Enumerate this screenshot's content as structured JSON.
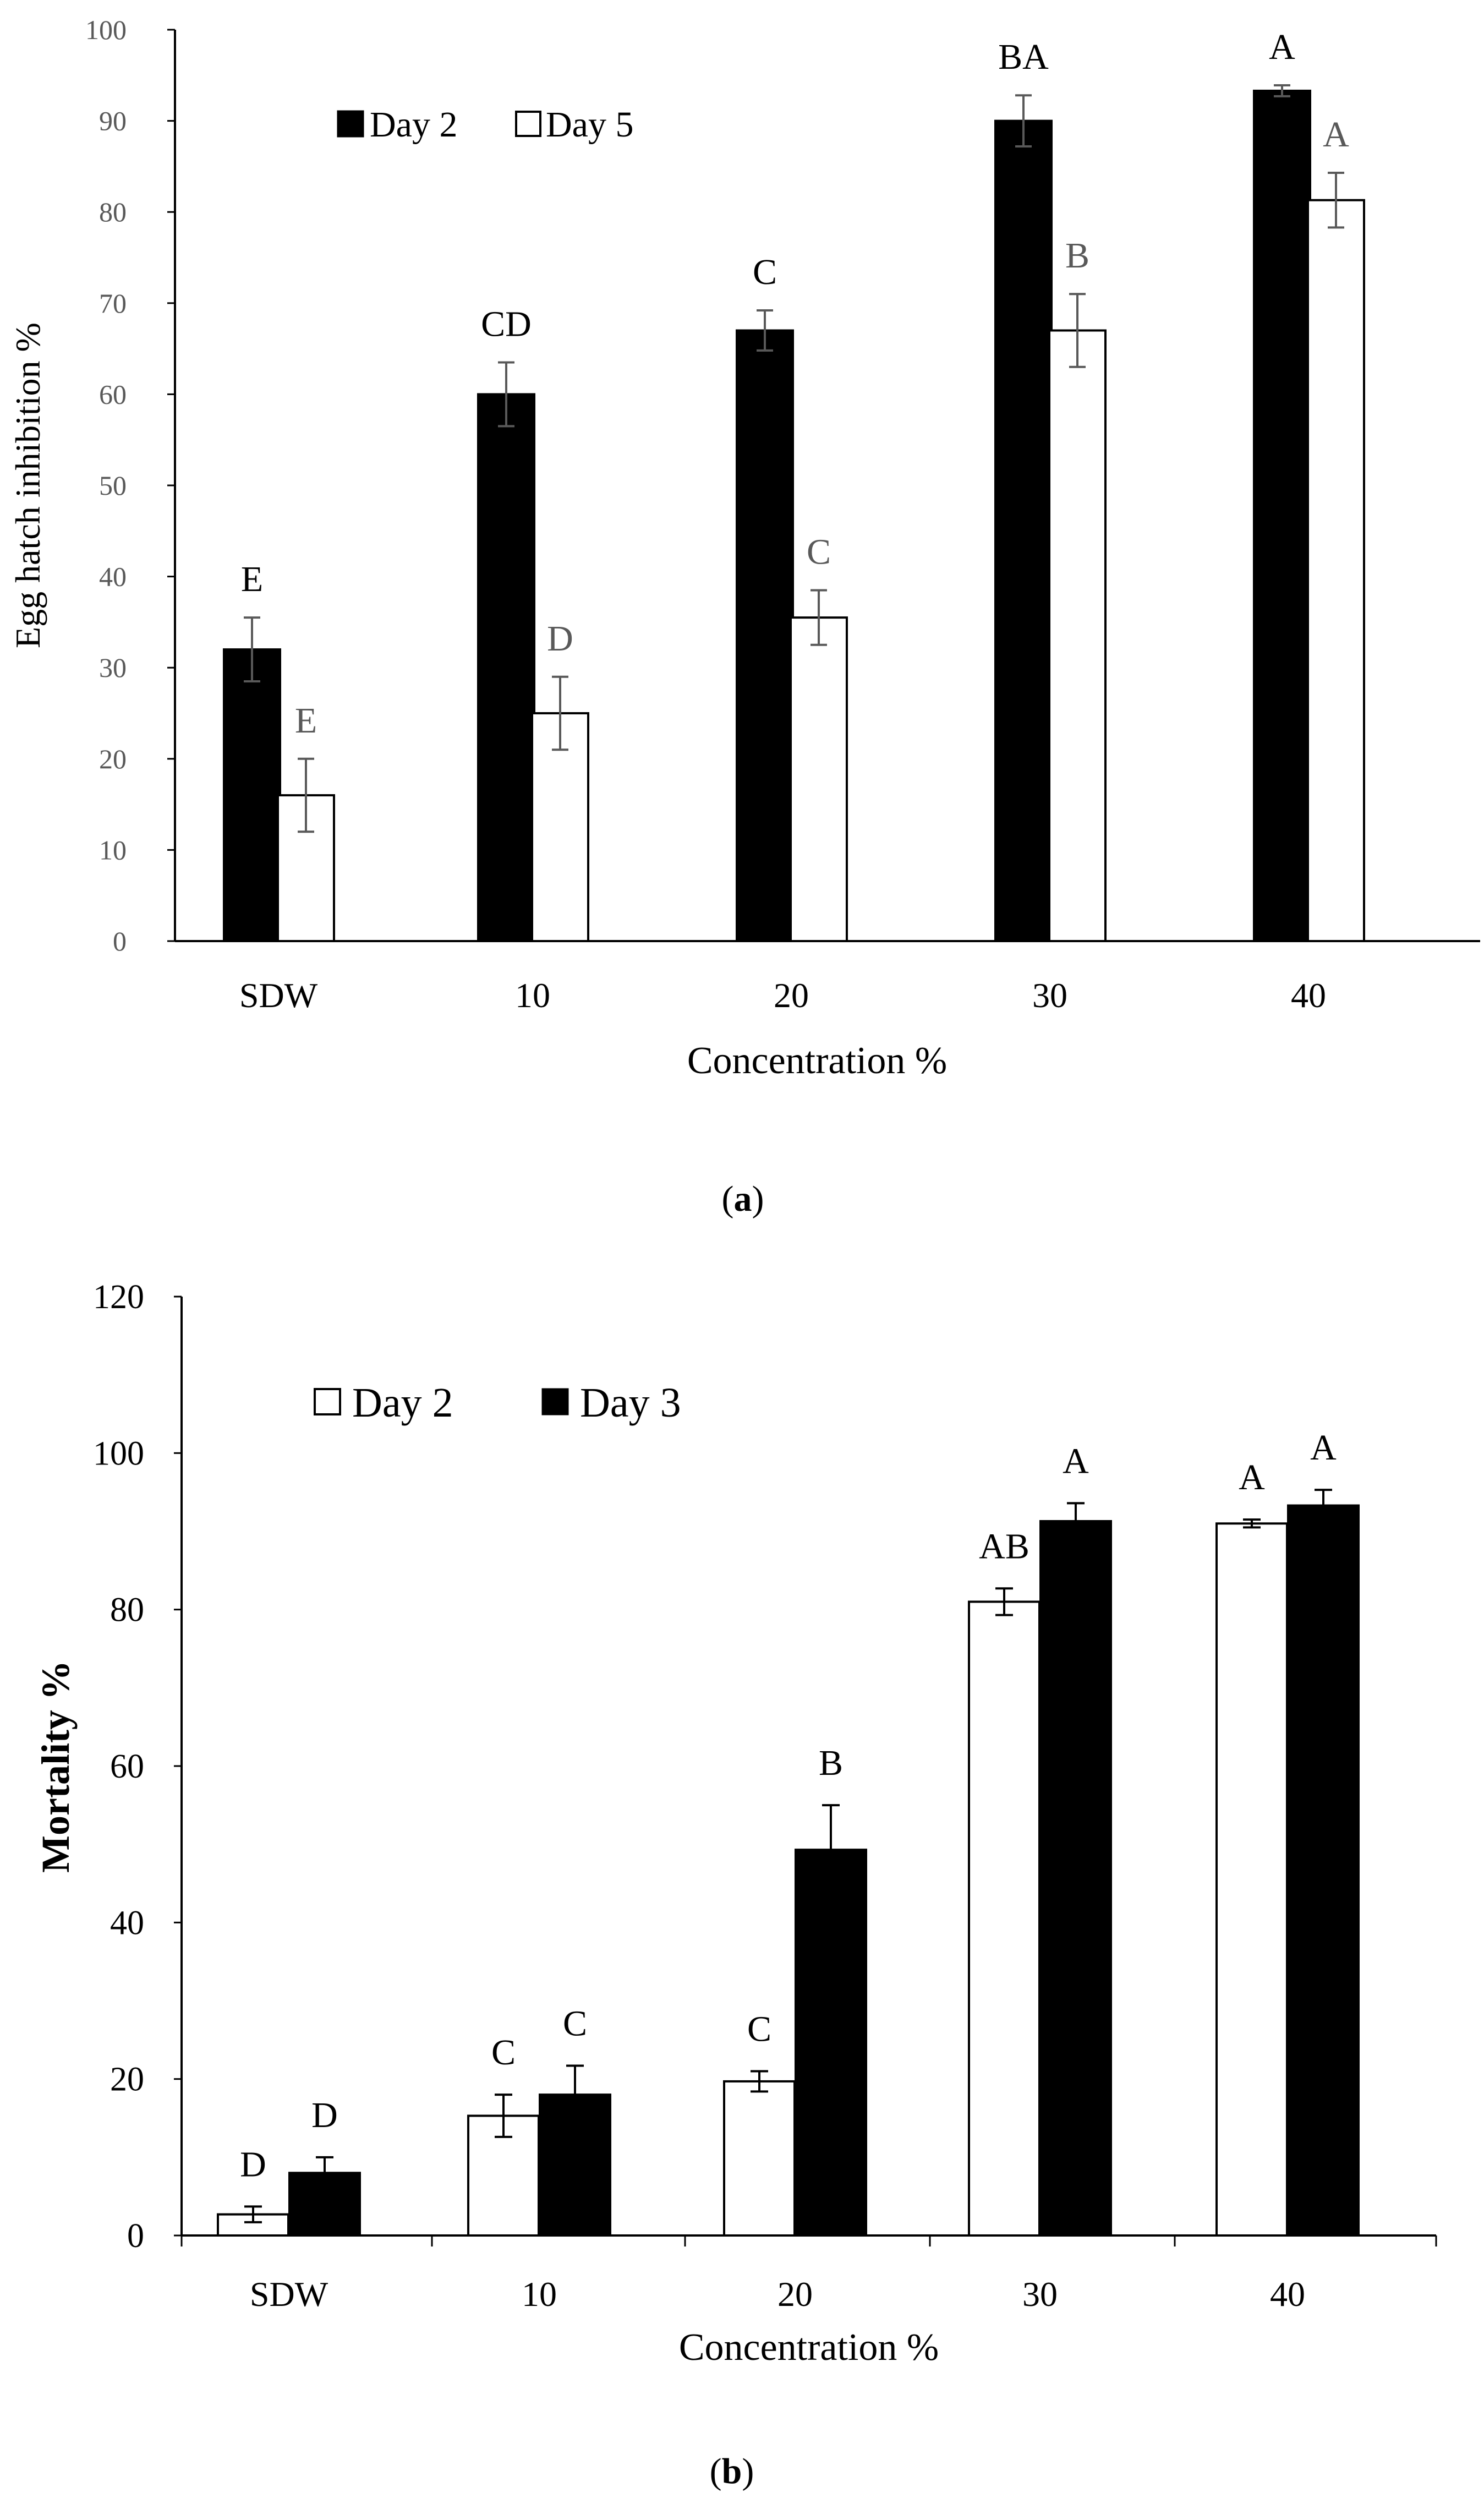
{
  "chart_data": [
    {
      "type": "bar",
      "caption_letter": "a",
      "title": "",
      "xlabel": "Concentration %",
      "ylabel": "Egg hatch inhibition %",
      "ylim": [
        0,
        100
      ],
      "yticks": [
        "0",
        "10",
        "20",
        "30",
        "40",
        "50",
        "60",
        "70",
        "80",
        "90",
        "100"
      ],
      "categories": [
        "SDW",
        "10",
        "20",
        "30",
        "40"
      ],
      "legend_position": "top-left",
      "series": [
        {
          "name": "Day 2",
          "fill": "#000000",
          "letter_color": "#000000",
          "values": [
            32,
            60,
            67,
            90,
            93.3
          ],
          "errors": [
            3.5,
            3.5,
            2.2,
            2.8,
            0.6
          ],
          "letters": [
            "E",
            "CD",
            "C",
            "BA",
            "A"
          ]
        },
        {
          "name": "Day 5",
          "fill": "#ffffff",
          "letter_color": "#595959",
          "values": [
            16,
            25,
            35.5,
            67,
            81.3
          ],
          "errors": [
            4,
            4,
            3,
            4,
            3
          ],
          "letters": [
            "E",
            "D",
            "C",
            "B",
            "A"
          ]
        }
      ]
    },
    {
      "type": "bar",
      "caption_letter": "b",
      "title": "",
      "xlabel": "Concentration %",
      "ylabel": "Mortality %",
      "ylim": [
        0,
        120
      ],
      "yticks": [
        "0",
        "20",
        "40",
        "60",
        "80",
        "100",
        "120"
      ],
      "categories": [
        "SDW",
        "10",
        "20",
        "30",
        "40"
      ],
      "legend_position": "top-left",
      "series": [
        {
          "name": "Day 2",
          "fill": "#ffffff",
          "letter_color": "#000000",
          "values": [
            2.7,
            15.3,
            19.7,
            81,
            91
          ],
          "errors": [
            1,
            2.7,
            1.3,
            1.7,
            0.5
          ],
          "letters": [
            "D",
            "C",
            "C",
            "AB",
            "A"
          ]
        },
        {
          "name": "Day 3",
          "fill": "#000000",
          "letter_color": "#000000",
          "values": [
            8,
            18,
            49.3,
            91.3,
            93.3
          ],
          "errors": [
            2,
            3.7,
            5.7,
            2.3,
            2
          ],
          "letters": [
            "D",
            "C",
            "B",
            "A",
            "A"
          ]
        }
      ]
    }
  ]
}
